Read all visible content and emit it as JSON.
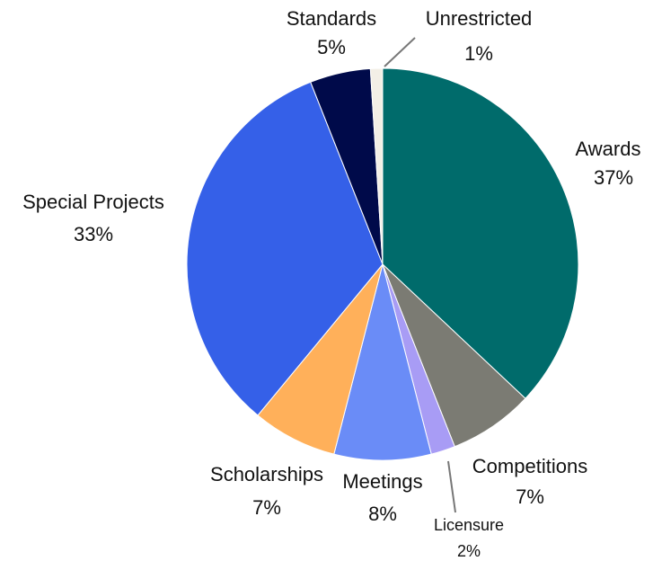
{
  "chart_data": {
    "type": "pie",
    "categories": [
      "Awards",
      "Competitions",
      "Licensure",
      "Meetings",
      "Scholarships",
      "Special Projects",
      "Standards",
      "Unrestricted"
    ],
    "values": [
      37,
      7,
      2,
      8,
      7,
      33,
      5,
      1
    ],
    "value_labels": [
      "37%",
      "7%",
      "2%",
      "8%",
      "7%",
      "33%",
      "5%",
      "1%"
    ],
    "colors": [
      "#006b6b",
      "#7b7b73",
      "#a89cf5",
      "#6a8cf7",
      "#ffb05a",
      "#3560e8",
      "#000a4a",
      "#f3efe6"
    ]
  }
}
